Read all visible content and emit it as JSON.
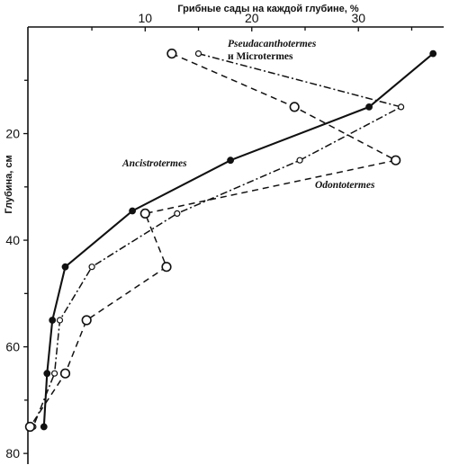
{
  "chart_data": {
    "type": "line",
    "xlabel": "Грибные сады на каждой глубине, %",
    "ylabel": "Глубина, см",
    "xlim": [
      -1,
      38
    ],
    "ylim": [
      82,
      0
    ],
    "x_ticks": [
      10,
      20,
      30
    ],
    "y_ticks": [
      20,
      40,
      60,
      80
    ],
    "x_axis_position": "top",
    "grid": false,
    "legend": "none",
    "series": [
      {
        "name": "Ancistrotermes",
        "line_style": "solid",
        "marker": "filled-circle",
        "points": [
          {
            "x": 37,
            "y": 5
          },
          {
            "x": 31,
            "y": 15
          },
          {
            "x": 18,
            "y": 25
          },
          {
            "x": 8.8,
            "y": 34.5
          },
          {
            "x": 2.5,
            "y": 45
          },
          {
            "x": 1.3,
            "y": 55
          },
          {
            "x": 0.8,
            "y": 65
          },
          {
            "x": 0.5,
            "y": 75
          }
        ]
      },
      {
        "name": "Pseudacanthotermes и Microtermes",
        "line_style": "dash-dot",
        "marker": "small-open-circle",
        "points": [
          {
            "x": 15,
            "y": 5
          },
          {
            "x": 34,
            "y": 15
          },
          {
            "x": 24.5,
            "y": 25
          },
          {
            "x": 13,
            "y": 35
          },
          {
            "x": 5,
            "y": 45
          },
          {
            "x": 2,
            "y": 55
          },
          {
            "x": 1.5,
            "y": 65
          },
          {
            "x": -0.5,
            "y": 75
          }
        ]
      },
      {
        "name": "Odontotermes",
        "line_style": "dashed",
        "marker": "large-open-circle",
        "points": [
          {
            "x": 12.5,
            "y": 5
          },
          {
            "x": 24,
            "y": 15
          },
          {
            "x": 33.5,
            "y": 25
          },
          {
            "x": 10,
            "y": 35
          },
          {
            "x": 12,
            "y": 45
          },
          {
            "x": 4.5,
            "y": 55
          },
          {
            "x": 2.5,
            "y": 65
          },
          {
            "x": -0.8,
            "y": 75
          }
        ]
      }
    ],
    "annotations": [
      {
        "series": "Pseudacanthotermes и Microtermes",
        "lines": [
          "Pseudacanthotermes",
          "и Microtermes"
        ]
      },
      {
        "series": "Ancistrotermes",
        "lines": [
          "Ancistrotermes"
        ]
      },
      {
        "series": "Odontotermes",
        "lines": [
          "Odontotermes"
        ]
      }
    ]
  }
}
